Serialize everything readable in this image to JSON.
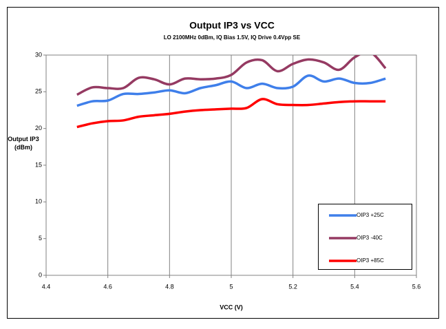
{
  "chart_data": {
    "type": "line",
    "title": "Output IP3 vs VCC",
    "subtitle": "LO 2100MHz 0dBm, IQ Bias 1.5V, IQ Drive 0.4Vpp SE",
    "x_label": "VCC (V)",
    "y_label": "Output IP3 (dBm)",
    "x": [
      4.5,
      4.55,
      4.6,
      4.65,
      4.7,
      4.75,
      4.8,
      4.85,
      4.9,
      4.95,
      5.0,
      5.05,
      5.1,
      5.15,
      5.2,
      5.25,
      5.3,
      5.35,
      5.4,
      5.45,
      5.5
    ],
    "series": [
      {
        "name": "OIP3 +25C",
        "color": "#3f7fea",
        "values": [
          23.1,
          23.7,
          23.8,
          24.7,
          24.7,
          24.9,
          25.2,
          24.8,
          25.5,
          25.9,
          26.4,
          25.5,
          26.1,
          25.5,
          25.7,
          27.2,
          26.4,
          26.8,
          26.2,
          26.2,
          26.8
        ]
      },
      {
        "name": "OIP3 -40C",
        "color": "#953a62",
        "values": [
          24.6,
          25.6,
          25.5,
          25.5,
          26.9,
          26.7,
          26.0,
          26.8,
          26.7,
          26.8,
          27.3,
          29.0,
          29.3,
          27.8,
          28.8,
          29.4,
          29.0,
          28.0,
          29.7,
          30.4,
          28.2
        ]
      },
      {
        "name": "OIP3 +85C",
        "color": "#ff0000",
        "values": [
          20.2,
          20.7,
          21.0,
          21.1,
          21.6,
          21.8,
          22.0,
          22.3,
          22.5,
          22.6,
          22.7,
          22.8,
          24.0,
          23.3,
          23.2,
          23.2,
          23.4,
          23.6,
          23.7,
          23.7,
          23.7
        ]
      }
    ],
    "xlim": [
      4.4,
      5.6
    ],
    "xticks": [
      4.4,
      4.6,
      4.8,
      5,
      5.2,
      5.4,
      5.6
    ],
    "ylim": [
      0,
      30
    ],
    "yticks": [
      0,
      5,
      10,
      15,
      20,
      25,
      30
    ],
    "grid": "x",
    "legend": "lower right"
  }
}
